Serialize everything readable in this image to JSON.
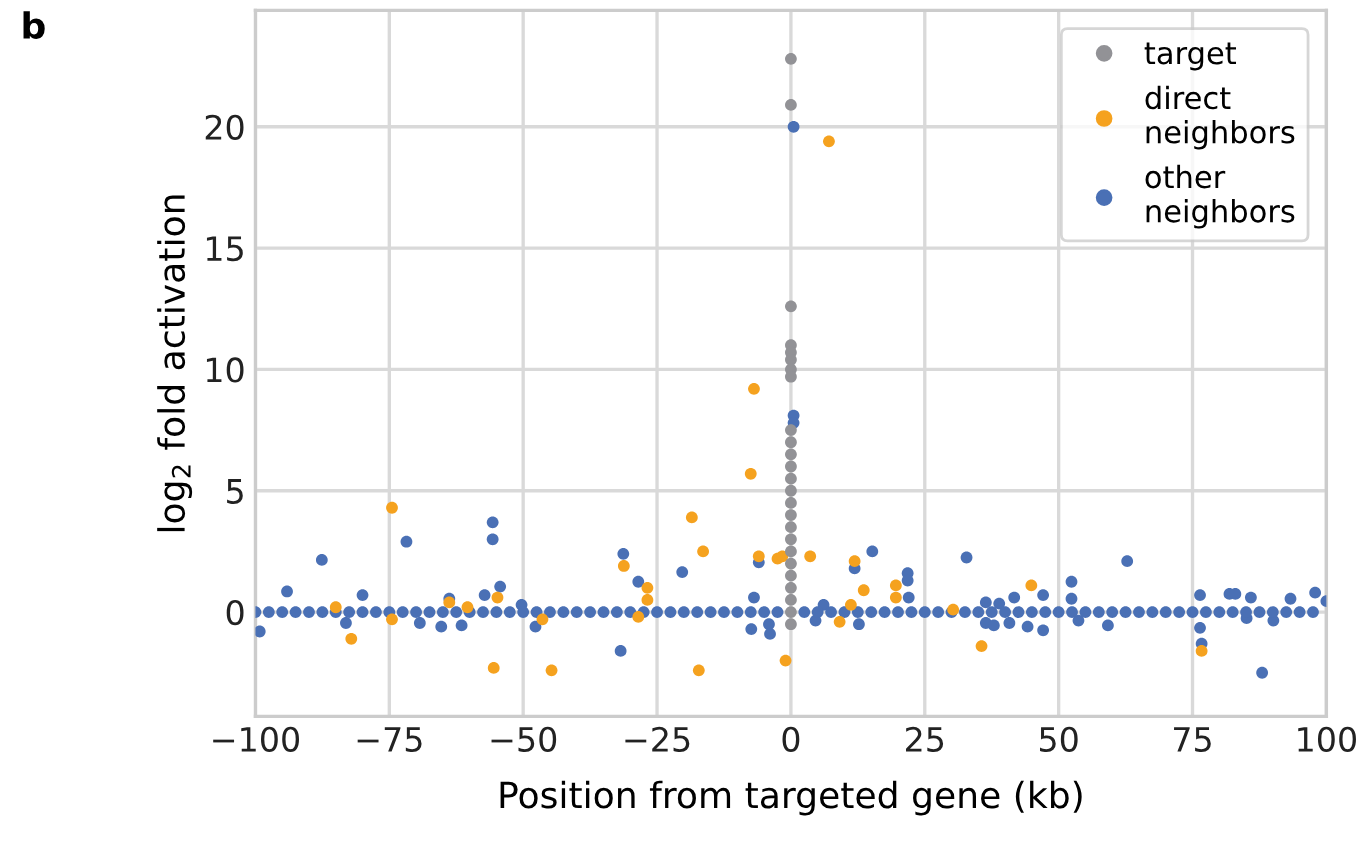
{
  "chart_data": {
    "type": "scatter",
    "xlabel": "Position from targeted gene (kb)",
    "ylabel": "log$_{2}$ fold activation",
    "annotations": [
      "b"
    ],
    "xlim": [
      -100,
      100
    ],
    "ylim": [
      -4.3,
      24.8
    ],
    "xticks": [
      {
        "value": -100,
        "label": "−100"
      },
      {
        "value": -75,
        "label": "−75"
      },
      {
        "value": -50,
        "label": "−50"
      },
      {
        "value": -25,
        "label": "−25"
      },
      0,
      25,
      50,
      75,
      100
    ],
    "yticks": [
      0,
      5,
      10,
      15,
      20
    ],
    "grid": true,
    "legend": "top right",
    "marker": "circle",
    "series": [
      {
        "name": "target",
        "color": "#929296",
        "x": [
          0,
          0,
          0,
          0,
          0,
          0,
          0,
          0,
          0,
          0,
          0,
          0,
          0,
          0,
          0,
          0,
          0,
          0,
          0,
          0,
          0,
          0,
          0,
          0,
          0
        ],
        "values": [
          22.8,
          20.9,
          12.6,
          11.0,
          10.7,
          10.4,
          10.0,
          9.7,
          7.5,
          7.0,
          6.5,
          6.0,
          5.5,
          5.0,
          4.5,
          4.0,
          3.5,
          3.0,
          2.5,
          2.0,
          1.5,
          1.0,
          0.5,
          0,
          -0.5
        ]
      },
      {
        "name": "direct neighbors",
        "color": "#f5a21f",
        "x": [
          7.1,
          -6.9,
          -7.5,
          -18.5,
          -16.4,
          -31.2,
          -26.8,
          -26.8,
          -28.5,
          -17.2,
          -6,
          -2.5,
          -1.6,
          3.6,
          -1,
          11.9,
          13.6,
          11.2,
          9.1,
          19.6,
          19.6,
          30.3,
          35.6,
          -74.5,
          -85.0,
          -82.1,
          -74.5,
          -63.8,
          -60.4,
          -54.8,
          -55.5,
          -44.7,
          -46.4,
          44.9,
          76.7
        ],
        "values": [
          19.4,
          9.2,
          5.7,
          3.9,
          2.5,
          1.9,
          1.0,
          0.5,
          -0.2,
          -2.4,
          2.3,
          2.2,
          2.3,
          2.3,
          -2.0,
          2.1,
          0.9,
          0.3,
          -0.4,
          1.1,
          0.6,
          0.1,
          -1.4,
          4.3,
          0.2,
          -1.1,
          -0.3,
          0.4,
          0.2,
          0.6,
          -2.3,
          -2.4,
          -0.3,
          1.1,
          -1.6
        ]
      },
      {
        "name": "other neighbors",
        "color": "#4a70b5",
        "x": [
          0.5,
          0.5,
          0.5,
          -99.2,
          -94.1,
          -87.6,
          -80,
          -71.8,
          -55.7,
          -55.7,
          -54.3,
          -63.8,
          -57.2,
          -69.3,
          -65.3,
          -61.5,
          -47.7,
          -83.1,
          -50.3,
          -31.3,
          -28.5,
          -31.8,
          -20.3,
          -6.9,
          -7.4,
          -4.1,
          -3.9,
          -6,
          11.9,
          15.2,
          21.8,
          21.8,
          22,
          32.8,
          12.7,
          4.6,
          6.1,
          36.4,
          36.4,
          38.9,
          41.7,
          37.9,
          40.8,
          44.2,
          47.1,
          47.1,
          52.4,
          52.4,
          53.7,
          59.2,
          62.8,
          76.4,
          76.4,
          76.7,
          81.9,
          83,
          85.9,
          88,
          85.1,
          90.1,
          93.3,
          97.9,
          100,
          -100,
          -97.5,
          -95,
          -92.5,
          -90,
          -87.5,
          -85,
          -82.5,
          -80,
          -77.5,
          -75,
          -72.5,
          -70,
          -67.5,
          -65,
          -62.5,
          -60,
          -57.5,
          -55,
          -52.5,
          -50,
          -47.5,
          -45,
          -42.5,
          -40,
          -37.5,
          -35,
          -32.5,
          -30,
          -27.5,
          -25,
          -22.5,
          -20,
          -17.5,
          -15,
          -12.5,
          -10,
          -7.5,
          -5,
          -2.5,
          2.5,
          5,
          7.5,
          10,
          12.5,
          15,
          17.5,
          20,
          22.5,
          25,
          27.5,
          30,
          32.5,
          35,
          37.5,
          40,
          42.5,
          45,
          47.5,
          50,
          52.5,
          55,
          57.5,
          60,
          62.5,
          65,
          67.5,
          70,
          72.5,
          75,
          77.5,
          80,
          82.5,
          85,
          87.5,
          90,
          92.5,
          95,
          97.5
        ],
        "values": [
          20.0,
          8.1,
          7.8,
          -0.8,
          0.85,
          2.15,
          0.7,
          2.9,
          3.7,
          3.0,
          1.05,
          0.55,
          0.7,
          -0.45,
          -0.6,
          -0.55,
          -0.6,
          -0.45,
          0.3,
          2.4,
          1.25,
          -1.6,
          1.65,
          0.6,
          -0.7,
          -0.5,
          -0.9,
          2.05,
          1.8,
          2.5,
          1.6,
          1.3,
          0.6,
          2.25,
          -0.5,
          -0.35,
          0.3,
          -0.45,
          0.4,
          0.35,
          0.6,
          -0.55,
          -0.45,
          -0.6,
          0.7,
          -0.75,
          1.25,
          0.55,
          -0.35,
          -0.55,
          2.1,
          0.7,
          -0.65,
          -1.3,
          0.75,
          0.75,
          0.6,
          -2.5,
          -0.25,
          -0.35,
          0.55,
          0.8,
          0.45,
          0,
          0,
          0,
          0,
          0,
          0,
          0,
          0,
          0,
          0,
          0,
          0,
          0,
          0,
          0,
          0,
          0,
          0,
          0,
          0,
          0,
          0,
          0,
          0,
          0,
          0,
          0,
          0,
          0,
          0,
          0,
          0,
          0,
          0,
          0,
          0,
          0,
          0,
          0,
          0,
          0,
          0,
          0,
          0,
          0,
          0,
          0,
          0,
          0,
          0,
          0,
          0,
          0,
          0,
          0,
          0,
          0,
          0,
          0,
          0,
          0,
          0,
          0,
          0,
          0,
          0,
          0,
          0,
          0,
          0,
          0,
          0,
          0,
          0,
          0,
          0,
          0,
          0,
          0
        ]
      }
    ]
  }
}
